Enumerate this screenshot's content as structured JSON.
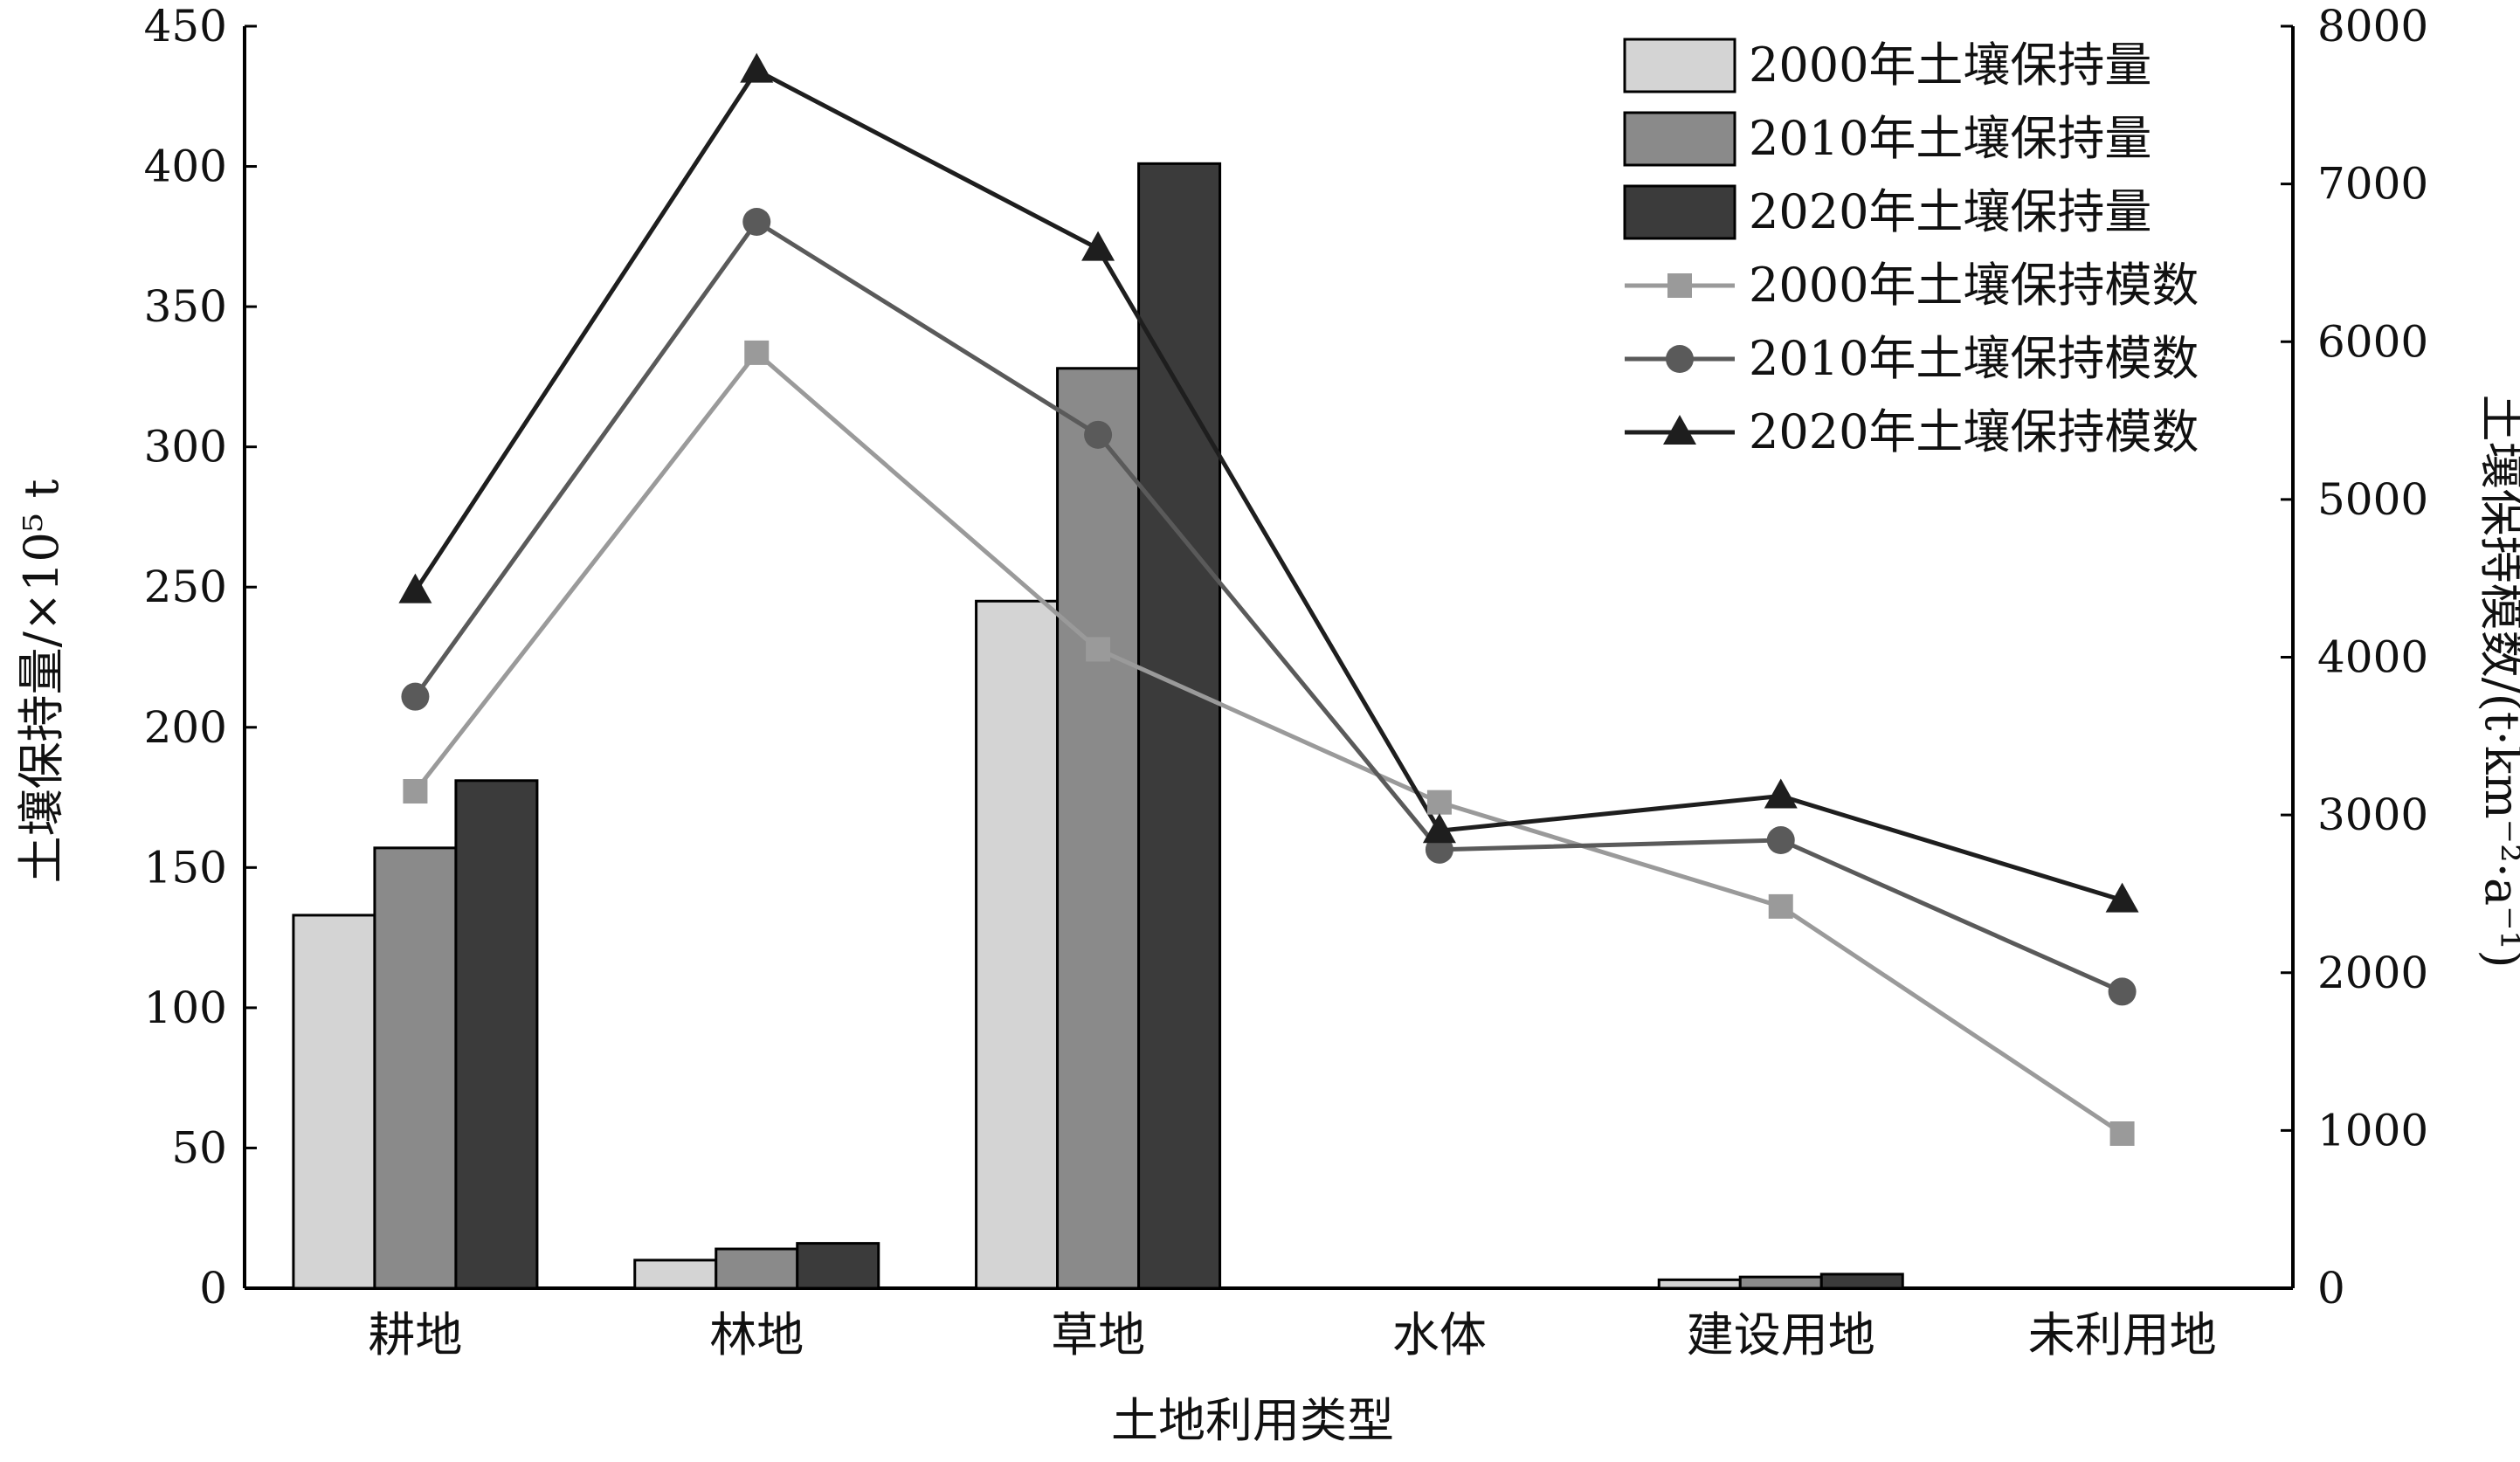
{
  "chart_data": {
    "type": "bar",
    "xlabel": "土地利用类型",
    "ylabel": "土壤保持量/×10⁵ t",
    "y2label": "土壤保持模数/(t·km⁻²·a⁻¹)",
    "categories": [
      "耕地",
      "林地",
      "草地",
      "水体",
      "建设用地",
      "未利用地"
    ],
    "ylim": [
      0,
      450
    ],
    "y_ticks": [
      0,
      50,
      100,
      150,
      200,
      250,
      300,
      350,
      400,
      450
    ],
    "y2lim": [
      0,
      8000
    ],
    "y2_ticks": [
      0,
      1000,
      2000,
      3000,
      4000,
      5000,
      6000,
      7000,
      8000
    ],
    "grid": false,
    "legend_position": "top-right",
    "bar_series": [
      {
        "name": "2000年土壤保持量",
        "color": "#d4d4d4",
        "values": [
          133,
          10,
          245,
          0,
          3,
          0
        ]
      },
      {
        "name": "2010年土壤保持量",
        "color": "#8a8a8a",
        "values": [
          157,
          14,
          328,
          0,
          4,
          0
        ]
      },
      {
        "name": "2020年土壤保持量",
        "color": "#3b3b3b",
        "values": [
          181,
          16,
          401,
          0,
          5,
          0
        ]
      }
    ],
    "line_series": [
      {
        "name": "2000年土壤保持模数",
        "color": "#9a9a9a",
        "marker": "square",
        "values": [
          3150,
          5930,
          4050,
          3080,
          2420,
          980
        ]
      },
      {
        "name": "2010年土壤保持模数",
        "color": "#5a5a5a",
        "marker": "circle",
        "values": [
          3750,
          6760,
          5410,
          2780,
          2840,
          1880
        ]
      },
      {
        "name": "2020年土壤保持模数",
        "color": "#1e1e1e",
        "marker": "triangle",
        "values": [
          4420,
          7720,
          6590,
          2900,
          3120,
          2460
        ]
      }
    ]
  }
}
